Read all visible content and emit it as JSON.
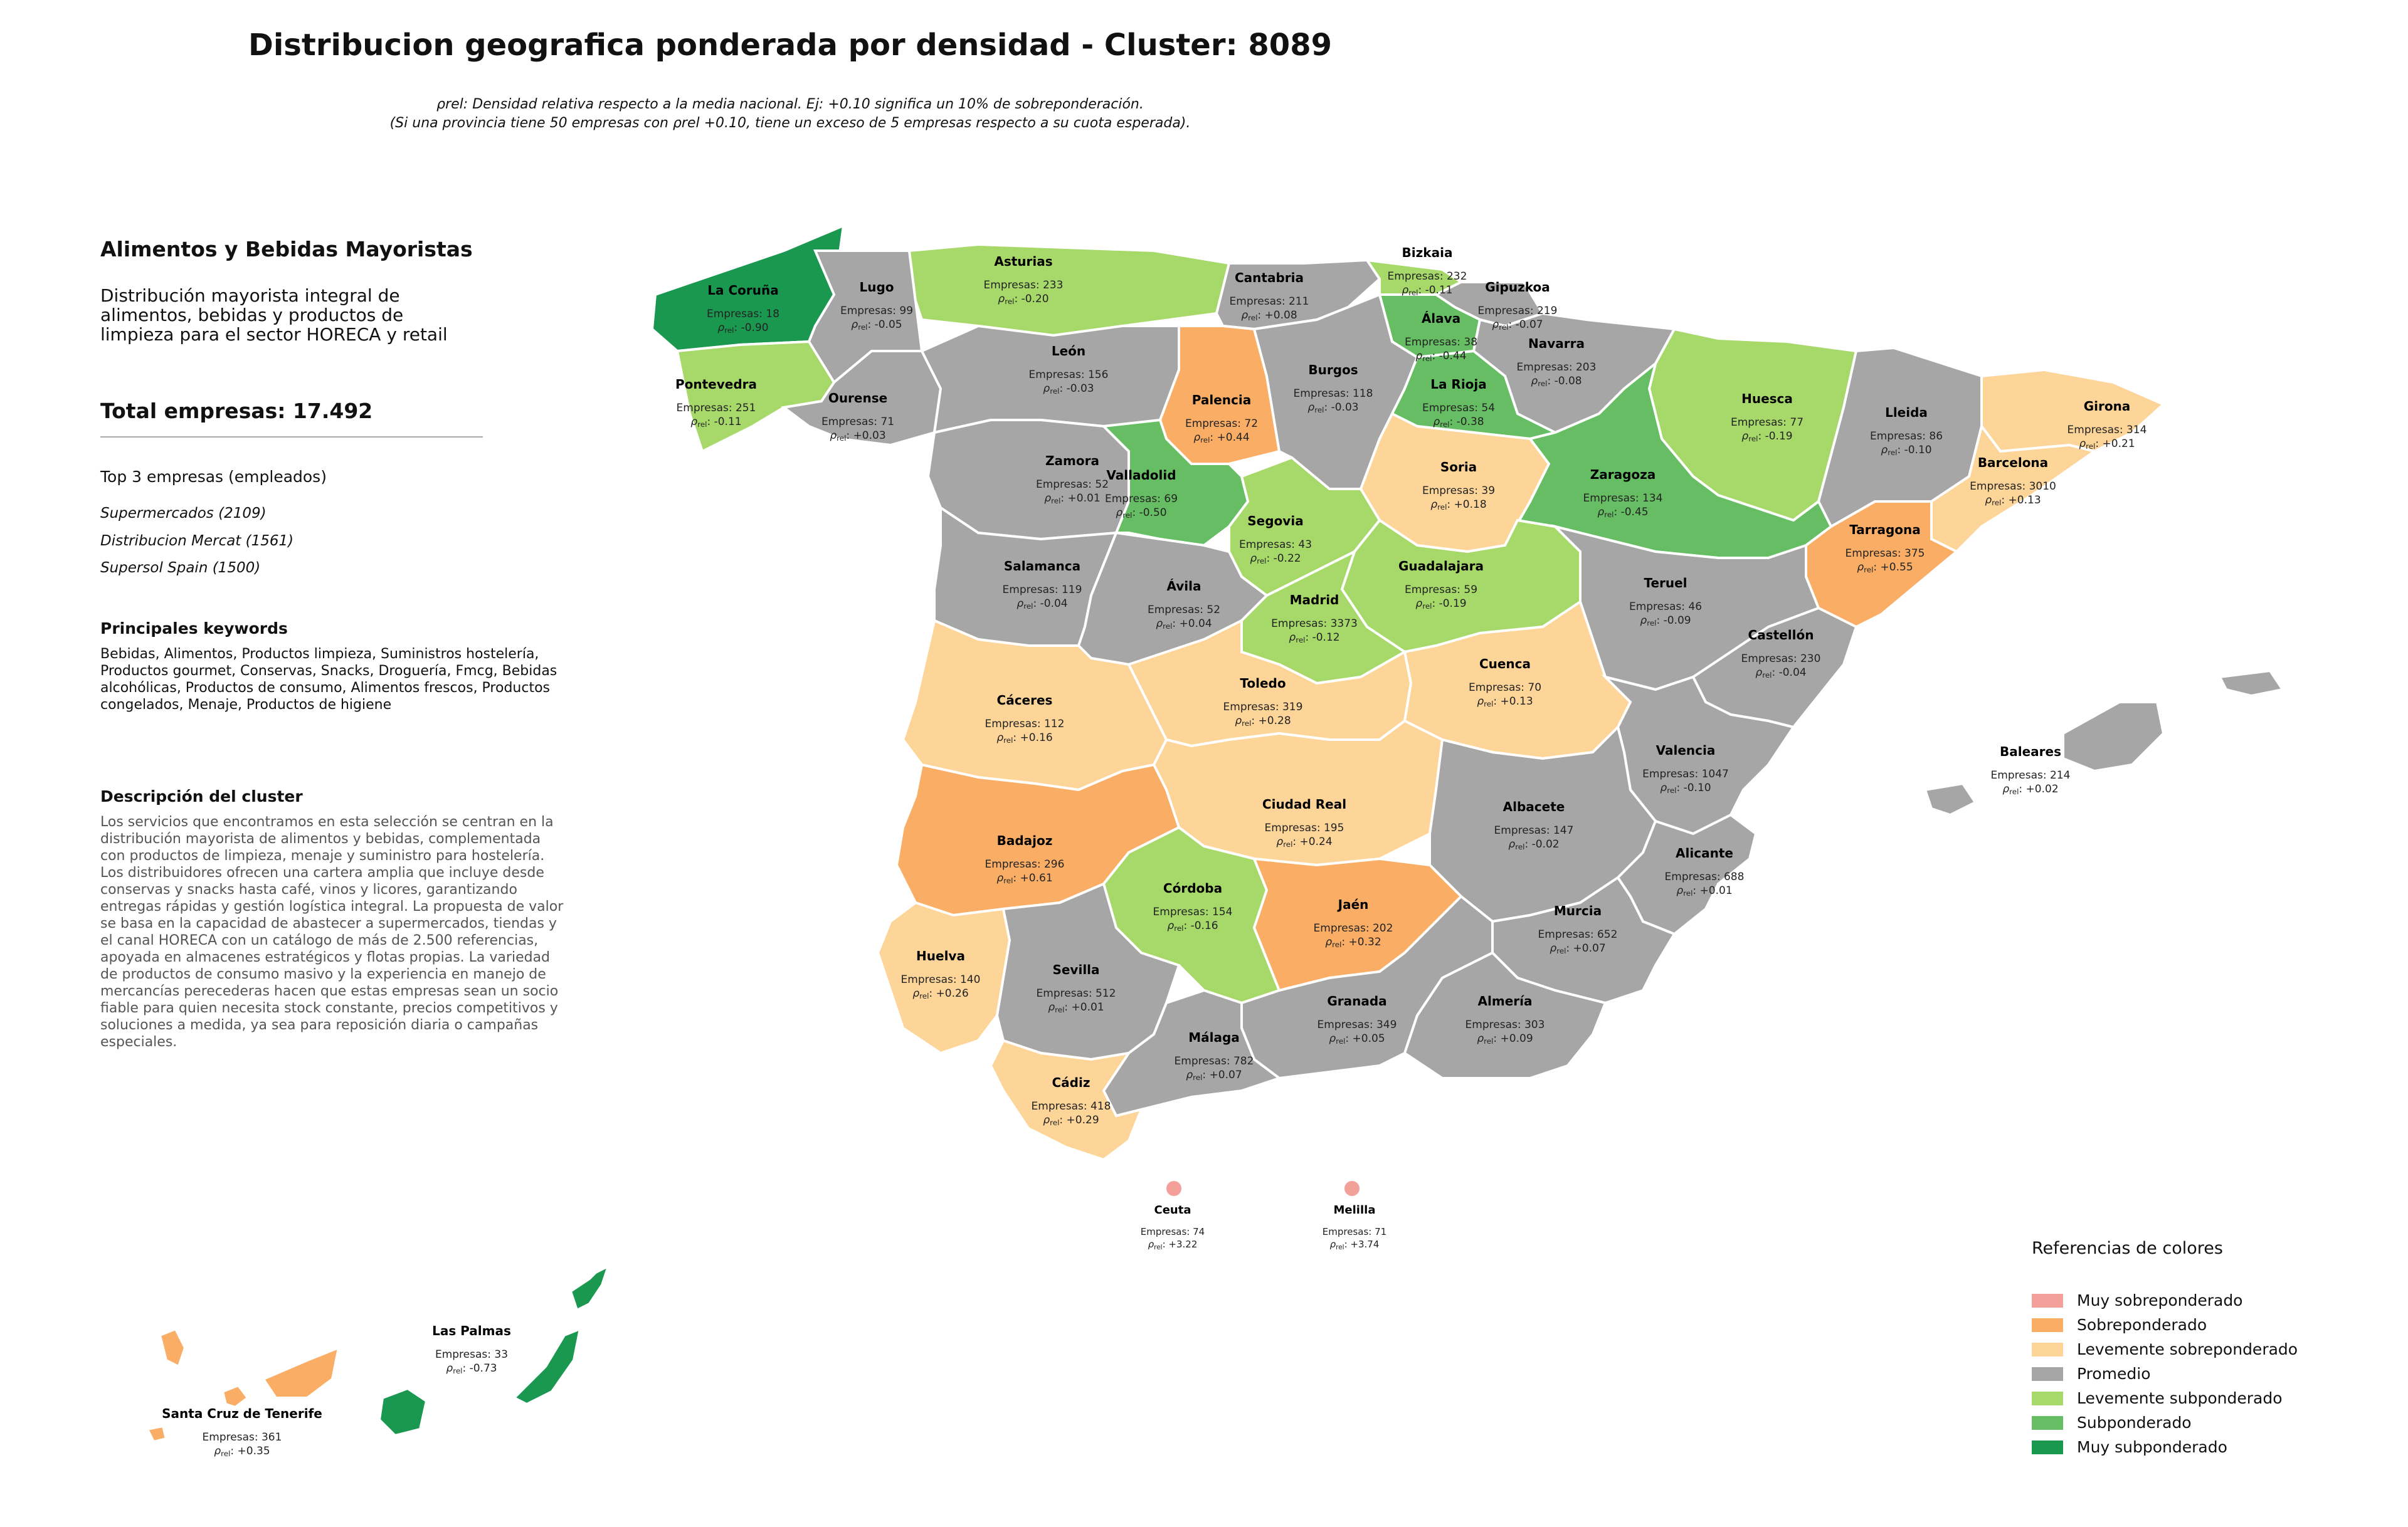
{
  "title": "Distribucion geografica ponderada por densidad - Cluster: 8089",
  "subtitle_line1": "ρrel: Densidad relativa respecto a la media nacional. Ej: +0.10 significa un 10% de sobreponderación.",
  "subtitle_line2": "(Si una provincia tiene 50 empresas con ρrel +0.10, tiene un exceso de 5 empresas respecto a su cuota esperada).",
  "sidebar": {
    "cluster_name": "Alimentos y Bebidas Mayoristas",
    "cluster_desc": "Distribución mayorista integral de\nalimentos, bebidas y productos de\nlimpieza para el sector HORECA y retail",
    "total": "Total empresas: 17.492",
    "top3_heading": "Top 3 empresas (empleados)",
    "top3": [
      "Supermercados (2109)",
      "Distribucion Mercat (1561)",
      "Supersol Spain (1500)"
    ],
    "keywords_heading": "Principales keywords",
    "keywords": "Bebidas, Alimentos, Productos limpieza, Suministros hostelería, Productos gourmet, Conservas, Snacks, Droguería, Fmcg, Bebidas alcohólicas, Productos de consumo, Alimentos frescos, Productos congelados, Menaje, Productos de higiene",
    "cluster_desc_heading": "Descripción del cluster",
    "cluster_long": "Los servicios que encontramos en esta selección se centran en la distribución mayorista de alimentos y bebidas, complementada con productos de limpieza, menaje y suministro para hostelería. Los distribuidores ofrecen una cartera amplia que incluye desde conservas y snacks hasta café, vinos y licores, garantizando entregas rápidas y gestión logística integral. La propuesta de valor se basa en la capacidad de abastecer a supermercados, tiendas y el canal HORECA con un catálogo de más de 2.500 referencias, apoyada en almacenes estratégicos y flotas propias. La variedad de productos de consumo masivo y la experiencia en manejo de mercancías perecederas hacen que estas empresas sean un socio fiable para quien necesita stock constante, precios competitivos y soluciones a medida, ya sea para reposición diaria o campañas especiales."
  },
  "colors": {
    "muy_sobre": "#f4a09a",
    "sobre": "#f9ad65",
    "lev_sobre": "#fdd598",
    "promedio": "#a6a6a6",
    "lev_sub": "#a6d96a",
    "sub": "#66bd63",
    "muy_sub": "#1a9850"
  },
  "legend": {
    "title": "Referencias de colores",
    "items": [
      {
        "label": "Muy sobreponderado",
        "color": "#f4a09a"
      },
      {
        "label": "Sobreponderado",
        "color": "#f9ad65"
      },
      {
        "label": "Levemente sobreponderado",
        "color": "#fdd598"
      },
      {
        "label": "Promedio",
        "color": "#a6a6a6"
      },
      {
        "label": "Levemente subponderado",
        "color": "#a6d96a"
      },
      {
        "label": "Subponderado",
        "color": "#66bd63"
      },
      {
        "label": "Muy subponderado",
        "color": "#1a9850"
      }
    ]
  },
  "labels": {
    "companies_prefix": "Empresas: ",
    "rho_symbol": "ρ",
    "rho_sub": "rel",
    "rho_sep": ": "
  },
  "provinces": [
    {
      "name": "La Coruña",
      "empresas": "18",
      "rho": "-0.90",
      "cat": "muy_sub"
    },
    {
      "name": "Lugo",
      "empresas": "99",
      "rho": "-0.05",
      "cat": "promedio"
    },
    {
      "name": "Asturias",
      "empresas": "233",
      "rho": "-0.20",
      "cat": "lev_sub"
    },
    {
      "name": "Cantabria",
      "empresas": "211",
      "rho": "+0.08",
      "cat": "promedio"
    },
    {
      "name": "Bizkaia",
      "empresas": "232",
      "rho": "-0.11",
      "cat": "lev_sub"
    },
    {
      "name": "Gipuzkoa",
      "empresas": "219",
      "rho": "-0.07",
      "cat": "promedio"
    },
    {
      "name": "Álava",
      "empresas": "38",
      "rho": "-0.44",
      "cat": "sub"
    },
    {
      "name": "Navarra",
      "empresas": "203",
      "rho": "-0.08",
      "cat": "promedio"
    },
    {
      "name": "Pontevedra",
      "empresas": "251",
      "rho": "-0.11",
      "cat": "lev_sub"
    },
    {
      "name": "Ourense",
      "empresas": "71",
      "rho": "+0.03",
      "cat": "promedio"
    },
    {
      "name": "León",
      "empresas": "156",
      "rho": "-0.03",
      "cat": "promedio"
    },
    {
      "name": "Palencia",
      "empresas": "72",
      "rho": "+0.44",
      "cat": "sobre"
    },
    {
      "name": "Burgos",
      "empresas": "118",
      "rho": "-0.03",
      "cat": "promedio"
    },
    {
      "name": "La Rioja",
      "empresas": "54",
      "rho": "-0.38",
      "cat": "sub"
    },
    {
      "name": "Huesca",
      "empresas": "77",
      "rho": "-0.19",
      "cat": "lev_sub"
    },
    {
      "name": "Lleida",
      "empresas": "86",
      "rho": "-0.10",
      "cat": "promedio"
    },
    {
      "name": "Girona",
      "empresas": "314",
      "rho": "+0.21",
      "cat": "lev_sobre"
    },
    {
      "name": "Barcelona",
      "empresas": "3010",
      "rho": "+0.13",
      "cat": "lev_sobre"
    },
    {
      "name": "Zamora",
      "empresas": "52",
      "rho": "+0.01",
      "cat": "promedio"
    },
    {
      "name": "Valladolid",
      "empresas": "69",
      "rho": "-0.50",
      "cat": "sub"
    },
    {
      "name": "Soria",
      "empresas": "39",
      "rho": "+0.18",
      "cat": "lev_sobre"
    },
    {
      "name": "Zaragoza",
      "empresas": "134",
      "rho": "-0.45",
      "cat": "sub"
    },
    {
      "name": "Tarragona",
      "empresas": "375",
      "rho": "+0.55",
      "cat": "sobre"
    },
    {
      "name": "Salamanca",
      "empresas": "119",
      "rho": "-0.04",
      "cat": "promedio"
    },
    {
      "name": "Segovia",
      "empresas": "43",
      "rho": "-0.22",
      "cat": "lev_sub"
    },
    {
      "name": "Guadalajara",
      "empresas": "59",
      "rho": "-0.19",
      "cat": "lev_sub"
    },
    {
      "name": "Ávila",
      "empresas": "52",
      "rho": "+0.04",
      "cat": "promedio"
    },
    {
      "name": "Madrid",
      "empresas": "3373",
      "rho": "-0.12",
      "cat": "lev_sub"
    },
    {
      "name": "Teruel",
      "empresas": "46",
      "rho": "-0.09",
      "cat": "promedio"
    },
    {
      "name": "Castellón",
      "empresas": "230",
      "rho": "-0.04",
      "cat": "promedio"
    },
    {
      "name": "Cáceres",
      "empresas": "112",
      "rho": "+0.16",
      "cat": "lev_sobre"
    },
    {
      "name": "Toledo",
      "empresas": "319",
      "rho": "+0.28",
      "cat": "lev_sobre"
    },
    {
      "name": "Cuenca",
      "empresas": "70",
      "rho": "+0.13",
      "cat": "lev_sobre"
    },
    {
      "name": "Valencia",
      "empresas": "1047",
      "rho": "-0.10",
      "cat": "promedio"
    },
    {
      "name": "Baleares",
      "empresas": "214",
      "rho": "+0.02",
      "cat": "promedio"
    },
    {
      "name": "Ciudad Real",
      "empresas": "195",
      "rho": "+0.24",
      "cat": "lev_sobre"
    },
    {
      "name": "Albacete",
      "empresas": "147",
      "rho": "-0.02",
      "cat": "promedio"
    },
    {
      "name": "Badajoz",
      "empresas": "296",
      "rho": "+0.61",
      "cat": "sobre"
    },
    {
      "name": "Alicante",
      "empresas": "688",
      "rho": "+0.01",
      "cat": "promedio"
    },
    {
      "name": "Córdoba",
      "empresas": "154",
      "rho": "-0.16",
      "cat": "lev_sub"
    },
    {
      "name": "Jaén",
      "empresas": "202",
      "rho": "+0.32",
      "cat": "sobre"
    },
    {
      "name": "Murcia",
      "empresas": "652",
      "rho": "+0.07",
      "cat": "promedio"
    },
    {
      "name": "Huelva",
      "empresas": "140",
      "rho": "+0.26",
      "cat": "lev_sobre"
    },
    {
      "name": "Sevilla",
      "empresas": "512",
      "rho": "+0.01",
      "cat": "promedio"
    },
    {
      "name": "Granada",
      "empresas": "349",
      "rho": "+0.05",
      "cat": "promedio"
    },
    {
      "name": "Almería",
      "empresas": "303",
      "rho": "+0.09",
      "cat": "promedio"
    },
    {
      "name": "Málaga",
      "empresas": "782",
      "rho": "+0.07",
      "cat": "promedio"
    },
    {
      "name": "Cádiz",
      "empresas": "418",
      "rho": "+0.29",
      "cat": "lev_sobre"
    },
    {
      "name": "Ceuta",
      "empresas": "74",
      "rho": "+3.22",
      "cat": "muy_sobre"
    },
    {
      "name": "Melilla",
      "empresas": "71",
      "rho": "+3.74",
      "cat": "muy_sobre"
    },
    {
      "name": "Las Palmas",
      "empresas": "33",
      "rho": "-0.73",
      "cat": "muy_sub"
    },
    {
      "name": "Santa Cruz de Tenerife",
      "empresas": "361",
      "rho": "+0.35",
      "cat": "sobre"
    }
  ]
}
